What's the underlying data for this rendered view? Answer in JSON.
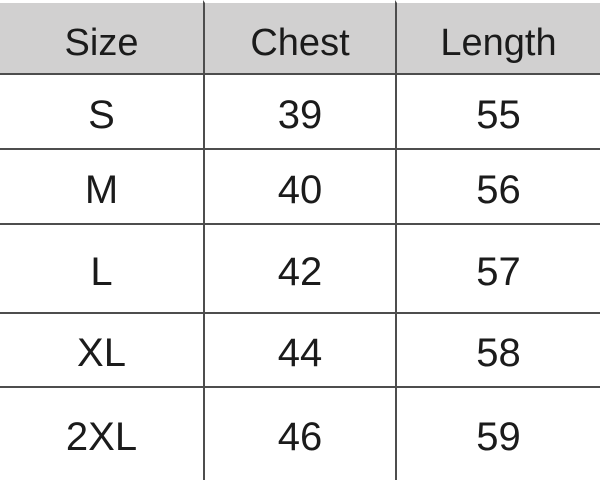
{
  "chart_data": {
    "type": "table",
    "columns": [
      "Size",
      "Chest",
      "Length"
    ],
    "rows": [
      [
        "S",
        "39",
        "55"
      ],
      [
        "M",
        "40",
        "56"
      ],
      [
        "L",
        "42",
        "57"
      ],
      [
        "XL",
        "44",
        "58"
      ],
      [
        "2XL",
        "46",
        "59"
      ]
    ]
  },
  "colors": {
    "background": "#ffffff",
    "header_bg": "#d1d0d0",
    "grid_line": "#4d4d4d",
    "text": "#1b1b1b"
  }
}
